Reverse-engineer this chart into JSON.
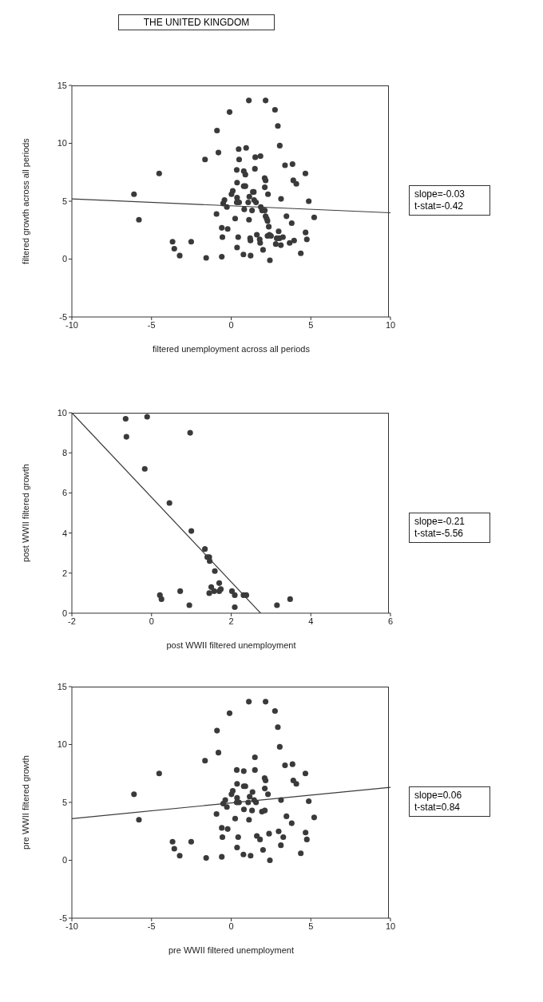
{
  "chart_data": [
    {
      "type": "scatter",
      "title": "THE UNITED KINGDOM",
      "xlabel": "filtered unemployment across all periods",
      "ylabel": "filtered growth across all periods",
      "xlim": [
        -10,
        10
      ],
      "xticks": [
        -10,
        -5,
        0,
        5,
        10
      ],
      "ylim": [
        -5,
        15
      ],
      "yticks": [
        -5,
        0,
        5,
        10,
        15
      ],
      "annotations": [
        "slope=-0.03",
        "t-stat=-0.42"
      ],
      "series": [
        {
          "type": "line",
          "color": "#3a3a3a",
          "x": [
            -10,
            10
          ],
          "values": [
            5.2,
            4.0
          ]
        },
        {
          "type": "scatter",
          "marker": "circle",
          "color": "#3a3a3a",
          "x": [
            1.11,
            2.16,
            -0.1,
            2.75,
            -0.89,
            2.93,
            3.05,
            0.47,
            0.94,
            -0.8,
            -1.64,
            0.5,
            1.51,
            1.84,
            -4.52,
            0.35,
            0.79,
            0.89,
            1.49,
            3.38,
            3.85,
            4.66,
            2.1,
            2.16,
            3.9,
            4.09,
            0.37,
            0.79,
            0.89,
            2.11,
            -6.1,
            0.1,
            0.02,
            1.36,
            1.42,
            0.37,
            1.14,
            2.31,
            3.13,
            4.87,
            -0.42,
            -0.5,
            0.35,
            0.5,
            1.07,
            1.44,
            1.56,
            -0.27,
            1.86,
            0.82,
            1.31,
            1.94,
            2.11,
            -5.79,
            -0.92,
            0.25,
            1.12,
            2.16,
            2.23,
            2.28,
            3.47,
            5.21,
            3.8,
            -0.59,
            -0.22,
            2.36,
            2.98,
            4.67,
            -3.68,
            -2.51,
            -0.55,
            0.44,
            1.19,
            1.21,
            1.61,
            1.79,
            1.82,
            2.28,
            2.4,
            2.5,
            2.86,
            3.03,
            3.25,
            3.95,
            4.75,
            3.67,
            2.8,
            3.12,
            -3.57,
            0.37,
            2.0,
            -3.23,
            -1.57,
            -0.59,
            0.77,
            1.22,
            2.43,
            4.37
          ],
          "values": [
            13.7,
            13.7,
            12.7,
            12.9,
            11.1,
            11.5,
            9.8,
            9.5,
            9.6,
            9.2,
            8.6,
            8.6,
            8.8,
            8.9,
            7.4,
            7.7,
            7.6,
            7.3,
            7.8,
            8.1,
            8.2,
            7.4,
            7.0,
            6.8,
            6.8,
            6.5,
            6.6,
            6.3,
            6.3,
            6.2,
            5.6,
            5.9,
            5.6,
            5.8,
            5.8,
            5.3,
            5.4,
            5.6,
            5.2,
            5.0,
            5.1,
            4.8,
            4.9,
            4.9,
            4.9,
            5.1,
            4.9,
            4.5,
            4.5,
            4.3,
            4.2,
            4.2,
            4.2,
            3.4,
            3.9,
            3.5,
            3.4,
            3.7,
            3.5,
            3.3,
            3.7,
            3.6,
            3.1,
            2.7,
            2.6,
            2.8,
            2.4,
            2.3,
            1.5,
            1.5,
            1.9,
            1.9,
            1.8,
            1.6,
            2.1,
            1.7,
            1.4,
            2.0,
            2.1,
            2.0,
            1.8,
            1.8,
            1.9,
            1.6,
            1.7,
            1.4,
            1.3,
            1.2,
            0.9,
            1.0,
            0.8,
            0.3,
            0.1,
            0.2,
            0.4,
            0.3,
            -0.1,
            0.5
          ]
        }
      ]
    },
    {
      "type": "scatter",
      "xlabel": "post WWII filtered unemployment",
      "ylabel": "post WWII filtered growth",
      "xlim": [
        -2,
        6
      ],
      "xticks": [
        -2,
        0,
        2,
        4,
        6
      ],
      "ylim": [
        0,
        10
      ],
      "yticks": [
        0,
        2,
        4,
        6,
        8,
        10
      ],
      "annotations": [
        "slope=-0.21",
        "t-stat=-5.56"
      ],
      "series": [
        {
          "type": "line",
          "color": "#3a3a3a",
          "x": [
            -2,
            2.74
          ],
          "values": [
            10,
            0
          ]
        },
        {
          "type": "scatter",
          "marker": "circle",
          "color": "#3a3a3a",
          "x": [
            -0.65,
            -0.11,
            -0.63,
            0.97,
            -0.17,
            0.45,
            1.0,
            1.34,
            1.4,
            1.45,
            1.46,
            1.59,
            1.7,
            1.5,
            1.45,
            1.57,
            1.7,
            1.74,
            2.02,
            2.09,
            2.31,
            2.38,
            0.21,
            0.25,
            0.72,
            0.95,
            2.09,
            3.15,
            3.48
          ],
          "values": [
            9.7,
            9.8,
            8.8,
            9.0,
            7.2,
            5.5,
            4.1,
            3.2,
            2.8,
            2.8,
            2.6,
            2.1,
            1.5,
            1.3,
            1.0,
            1.1,
            1.1,
            1.2,
            1.1,
            0.9,
            0.9,
            0.9,
            0.9,
            0.7,
            1.1,
            0.4,
            0.3,
            0.4,
            0.7
          ]
        }
      ]
    },
    {
      "type": "scatter",
      "xlabel": "pre WWII filtered unemployment",
      "ylabel": "pre WWII filtered growth",
      "xlim": [
        -10,
        10
      ],
      "xticks": [
        -10,
        -5,
        0,
        5,
        10
      ],
      "ylim": [
        -5,
        15
      ],
      "yticks": [
        -5,
        0,
        5,
        10,
        15
      ],
      "annotations": [
        "slope=0.06",
        "t-stat=0.84"
      ],
      "series": [
        {
          "type": "line",
          "color": "#3a3a3a",
          "x": [
            -10,
            10
          ],
          "values": [
            3.6,
            6.3
          ]
        },
        {
          "type": "scatter",
          "marker": "circle",
          "color": "#3a3a3a",
          "x": [
            1.11,
            2.16,
            -0.1,
            2.75,
            -0.89,
            2.93,
            3.05,
            -0.8,
            -1.64,
            1.49,
            -4.52,
            0.35,
            0.79,
            1.49,
            3.38,
            3.85,
            4.66,
            2.1,
            2.16,
            3.9,
            4.09,
            0.37,
            0.79,
            0.89,
            2.11,
            -6.1,
            0.1,
            0.02,
            1.34,
            1.16,
            0.37,
            2.31,
            3.13,
            4.87,
            -0.37,
            -0.5,
            0.35,
            0.49,
            1.07,
            1.44,
            1.56,
            -0.27,
            0.8,
            1.31,
            1.93,
            2.11,
            -5.79,
            -0.92,
            0.25,
            1.12,
            3.47,
            5.21,
            3.8,
            -0.59,
            -0.22,
            2.38,
            2.98,
            4.67,
            -3.68,
            -2.51,
            -0.55,
            0.44,
            1.61,
            1.81,
            3.27,
            4.75,
            3.12,
            -3.57,
            0.37,
            2.0,
            -3.23,
            -1.57,
            -0.59,
            0.77,
            1.22,
            2.43,
            4.37
          ],
          "values": [
            13.7,
            13.7,
            12.7,
            12.9,
            11.2,
            11.5,
            9.8,
            9.3,
            8.6,
            8.9,
            7.5,
            7.8,
            7.7,
            7.8,
            8.2,
            8.3,
            7.5,
            7.1,
            6.9,
            6.9,
            6.6,
            6.6,
            6.4,
            6.4,
            6.2,
            5.7,
            6.0,
            5.7,
            5.9,
            5.5,
            5.4,
            5.7,
            5.2,
            5.1,
            5.2,
            4.9,
            5.0,
            5.0,
            5.0,
            5.2,
            5.0,
            4.6,
            4.4,
            4.3,
            4.2,
            4.3,
            3.5,
            4.0,
            3.6,
            3.5,
            3.8,
            3.7,
            3.2,
            2.8,
            2.7,
            2.3,
            2.5,
            2.4,
            1.6,
            1.6,
            2.0,
            2.0,
            2.1,
            1.8,
            2.0,
            1.8,
            1.3,
            1.0,
            1.1,
            0.9,
            0.4,
            0.2,
            0.3,
            0.5,
            0.4,
            0.0,
            0.6
          ]
        }
      ]
    }
  ]
}
